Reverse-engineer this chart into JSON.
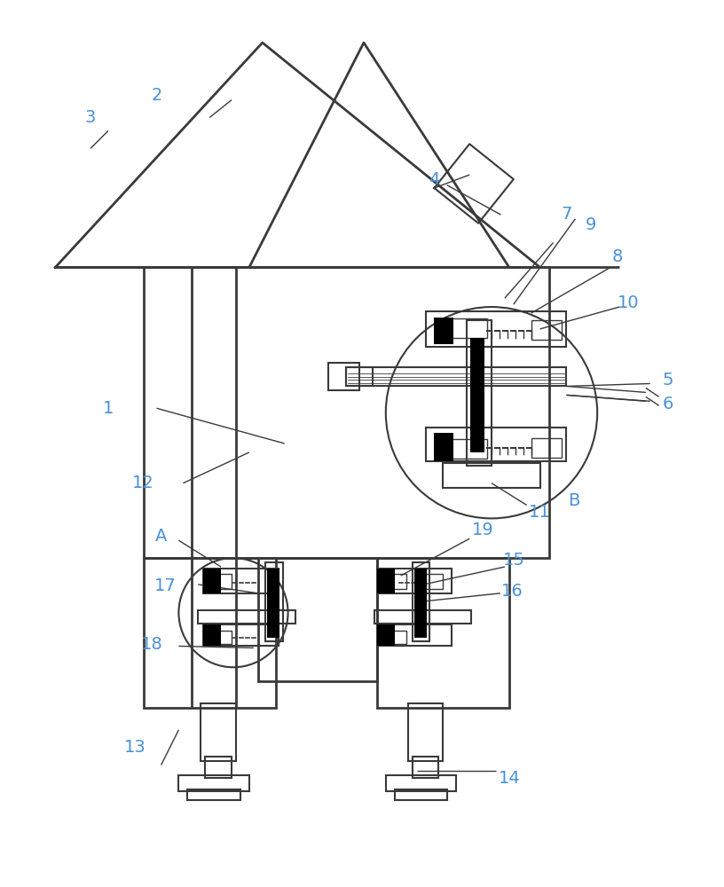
{
  "bg_color": "#ffffff",
  "line_color": "#3a3a3a",
  "label_color": "#4a90d9",
  "figsize": [
    8.16,
    10.0
  ],
  "dpi": 100
}
